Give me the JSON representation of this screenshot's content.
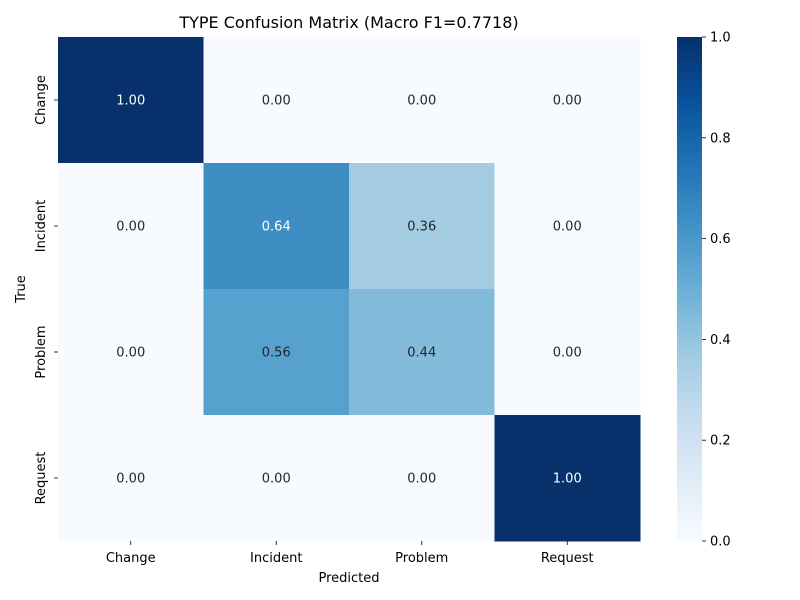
{
  "chart_data": {
    "type": "heatmap",
    "title": "TYPE Confusion Matrix (Macro F1=0.7718)",
    "xlabel": "Predicted",
    "ylabel": "True",
    "x_categories": [
      "Change",
      "Incident",
      "Problem",
      "Request"
    ],
    "y_categories": [
      "Change",
      "Incident",
      "Problem",
      "Request"
    ],
    "values": [
      [
        1.0,
        0.0,
        0.0,
        0.0
      ],
      [
        0.0,
        0.64,
        0.36,
        0.0
      ],
      [
        0.0,
        0.56,
        0.44,
        0.0
      ],
      [
        0.0,
        0.0,
        0.0,
        1.0
      ]
    ],
    "value_format": "0.00",
    "colormap": "Blues",
    "colorbar": {
      "range": [
        0,
        1
      ],
      "ticks": [
        0.0,
        0.2,
        0.4,
        0.6,
        0.8,
        1.0
      ],
      "tick_labels": [
        "0.0",
        "0.2",
        "0.4",
        "0.6",
        "0.8",
        "1.0"
      ]
    },
    "grid": false
  }
}
